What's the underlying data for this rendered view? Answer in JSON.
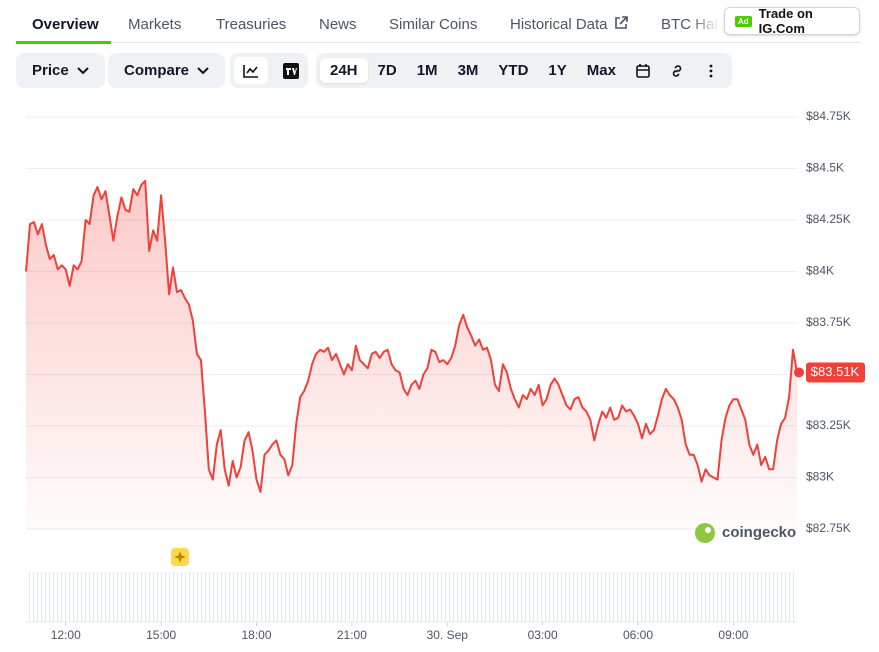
{
  "tabs": [
    "Overview",
    "Markets",
    "Treasuries",
    "News",
    "Similar Coins",
    "Historical Data",
    "BTC Hal"
  ],
  "ad": {
    "badge": "Ad",
    "label": "Trade on IG.Com"
  },
  "toolbar": {
    "dropdowns": [
      "Price",
      "Compare"
    ],
    "ranges": [
      "24H",
      "7D",
      "1M",
      "3M",
      "YTD",
      "1Y",
      "Max"
    ],
    "active_range": "24H"
  },
  "watermark": "coingecko",
  "chart_data": {
    "type": "line",
    "color": "#f0403a",
    "grid": true,
    "x": [
      10.75,
      10.875,
      11,
      11.125,
      11.25,
      11.375,
      11.5,
      11.625,
      11.75,
      11.875,
      12,
      12.125,
      12.25,
      12.375,
      12.5,
      12.625,
      12.75,
      12.875,
      13,
      13.125,
      13.25,
      13.375,
      13.5,
      13.625,
      13.75,
      13.875,
      14,
      14.125,
      14.25,
      14.375,
      14.5,
      14.625,
      14.75,
      14.875,
      15,
      15.125,
      15.25,
      15.375,
      15.5,
      15.625,
      15.75,
      15.875,
      16,
      16.125,
      16.25,
      16.375,
      16.5,
      16.625,
      16.75,
      16.875,
      17,
      17.125,
      17.25,
      17.375,
      17.5,
      17.625,
      17.75,
      17.875,
      18,
      18.125,
      18.25,
      18.375,
      18.5,
      18.625,
      18.75,
      18.875,
      19,
      19.125,
      19.25,
      19.375,
      19.5,
      19.625,
      19.75,
      19.875,
      20,
      20.125,
      20.25,
      20.375,
      20.5,
      20.625,
      20.75,
      20.875,
      21,
      21.125,
      21.25,
      21.375,
      21.5,
      21.625,
      21.75,
      21.875,
      22,
      22.125,
      22.25,
      22.375,
      22.5,
      22.625,
      22.75,
      22.875,
      23,
      23.125,
      23.25,
      23.375,
      23.5,
      23.625,
      23.75,
      23.875,
      24,
      24.125,
      24.25,
      24.375,
      24.5,
      24.625,
      24.75,
      24.875,
      25,
      25.125,
      25.25,
      25.375,
      25.5,
      25.625,
      25.75,
      25.875,
      26,
      26.125,
      26.25,
      26.375,
      26.5,
      26.625,
      26.75,
      26.875,
      27,
      27.125,
      27.25,
      27.375,
      27.5,
      27.625,
      27.75,
      27.875,
      28,
      28.125,
      28.25,
      28.375,
      28.5,
      28.625,
      28.75,
      28.875,
      29,
      29.125,
      29.25,
      29.375,
      29.5,
      29.625,
      29.75,
      29.875,
      30,
      30.125,
      30.25,
      30.375,
      30.5,
      30.625,
      30.75,
      30.875,
      31,
      31.125,
      31.25,
      31.375,
      31.5,
      31.625,
      31.75,
      31.875,
      32,
      32.125,
      32.25,
      32.375,
      32.5,
      32.625,
      32.75,
      32.875,
      33,
      33.125,
      33.25,
      33.375,
      33.5,
      33.625,
      33.75,
      33.875,
      34,
      34.125,
      34.25,
      34.375,
      34.5,
      34.625,
      34.75,
      34.875,
      35
    ],
    "values": [
      84000,
      84230,
      84240,
      84180,
      84230,
      84130,
      84060,
      84080,
      84010,
      84030,
      84010,
      83930,
      84030,
      84010,
      84050,
      84250,
      84230,
      84370,
      84410,
      84350,
      84390,
      84270,
      84150,
      84270,
      84360,
      84300,
      84290,
      84400,
      84370,
      84420,
      84440,
      84100,
      84200,
      84150,
      84370,
      84150,
      83890,
      84020,
      83900,
      83910,
      83870,
      83840,
      83760,
      83600,
      83570,
      83330,
      83040,
      82990,
      83160,
      83230,
      83040,
      82960,
      83080,
      83000,
      83050,
      83180,
      83220,
      83130,
      82990,
      82930,
      83110,
      83130,
      83160,
      83180,
      83110,
      83090,
      83010,
      83060,
      83260,
      83390,
      83420,
      83470,
      83550,
      83600,
      83620,
      83610,
      83630,
      83570,
      83600,
      83550,
      83500,
      83550,
      83520,
      83640,
      83570,
      83550,
      83530,
      83600,
      83610,
      83580,
      83610,
      83620,
      83550,
      83520,
      83510,
      83430,
      83400,
      83450,
      83470,
      83430,
      83500,
      83530,
      83620,
      83610,
      83560,
      83570,
      83550,
      83580,
      83640,
      83740,
      83790,
      83730,
      83690,
      83640,
      83670,
      83620,
      83630,
      83570,
      83450,
      83420,
      83550,
      83510,
      83430,
      83380,
      83340,
      83400,
      83380,
      83430,
      83400,
      83450,
      83350,
      83380,
      83450,
      83480,
      83450,
      83400,
      83350,
      83330,
      83380,
      83390,
      83340,
      83320,
      83280,
      83180,
      83260,
      83320,
      83290,
      83340,
      83280,
      83290,
      83350,
      83320,
      83330,
      83300,
      83260,
      83190,
      83260,
      83210,
      83230,
      83300,
      83380,
      83430,
      83400,
      83380,
      83340,
      83280,
      83160,
      83110,
      83110,
      83060,
      82980,
      83040,
      83010,
      83000,
      82990,
      83180,
      83290,
      83350,
      83380,
      83380,
      83330,
      83280,
      83160,
      83110,
      83160,
      83060,
      83100,
      83040,
      83040,
      83180,
      83260,
      83290,
      83390,
      83620,
      83510
    ],
    "last_price": {
      "value": 83510,
      "label": "$83.51K"
    },
    "xlim": [
      10.75,
      35
    ],
    "xticks": [
      {
        "value": 12,
        "label": "12:00"
      },
      {
        "value": 15,
        "label": "15:00"
      },
      {
        "value": 18,
        "label": "18:00"
      },
      {
        "value": 21,
        "label": "21:00"
      },
      {
        "value": 24,
        "label": "30. Sep"
      },
      {
        "value": 27,
        "label": "03:00"
      },
      {
        "value": 30,
        "label": "06:00"
      },
      {
        "value": 33,
        "label": "09:00"
      }
    ],
    "ylim": [
      82750,
      84750
    ],
    "yticks": [
      {
        "value": 82750,
        "label": "$82.75K"
      },
      {
        "value": 83000,
        "label": "$83K"
      },
      {
        "value": 83250,
        "label": "$83.25K"
      },
      {
        "value": 83500,
        "label": "$83.5K"
      },
      {
        "value": 83750,
        "label": "$83.75K"
      },
      {
        "value": 84000,
        "label": "$84K"
      },
      {
        "value": 84250,
        "label": "$84.25K"
      },
      {
        "value": 84500,
        "label": "$84.5K"
      },
      {
        "value": 84750,
        "label": "$84.75K"
      }
    ]
  }
}
